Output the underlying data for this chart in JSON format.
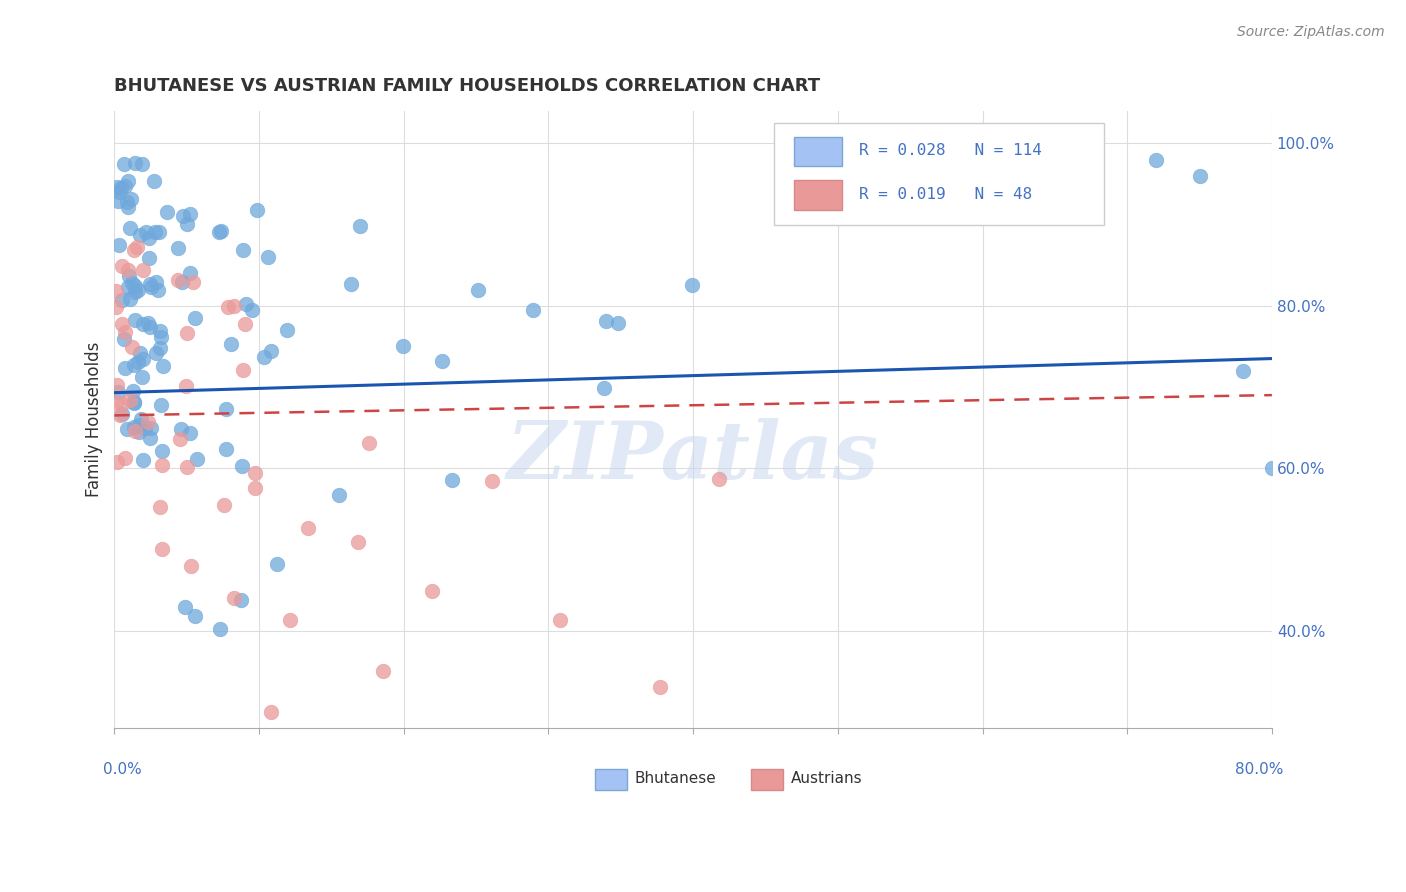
{
  "title": "BHUTANESE VS AUSTRIAN FAMILY HOUSEHOLDS CORRELATION CHART",
  "source_text": "Source: ZipAtlas.com",
  "ylabel": "Family Households",
  "x_min": 0.0,
  "x_max": 0.8,
  "y_min": 0.28,
  "y_max": 1.04,
  "bhutanese_R": 0.028,
  "bhutanese_N": 114,
  "austrians_R": 0.019,
  "austrians_N": 48,
  "blue_color": "#6fa8dc",
  "blue_edge": "#6fa8dc",
  "pink_color": "#ea9999",
  "pink_edge": "#ea9999",
  "legend_blue_face": "#a4c2f4",
  "legend_pink_face": "#ea9999",
  "blue_line_color": "#1a56b0",
  "pink_line_color": "#cc4444",
  "watermark_text": "ZIPatlas",
  "ytick_labels": [
    "40.0%",
    "60.0%",
    "80.0%",
    "100.0%"
  ],
  "ytick_values": [
    0.4,
    0.6,
    0.8,
    1.0
  ],
  "blue_trend_y": [
    0.693,
    0.735
  ],
  "pink_trend_y": [
    0.665,
    0.69
  ]
}
